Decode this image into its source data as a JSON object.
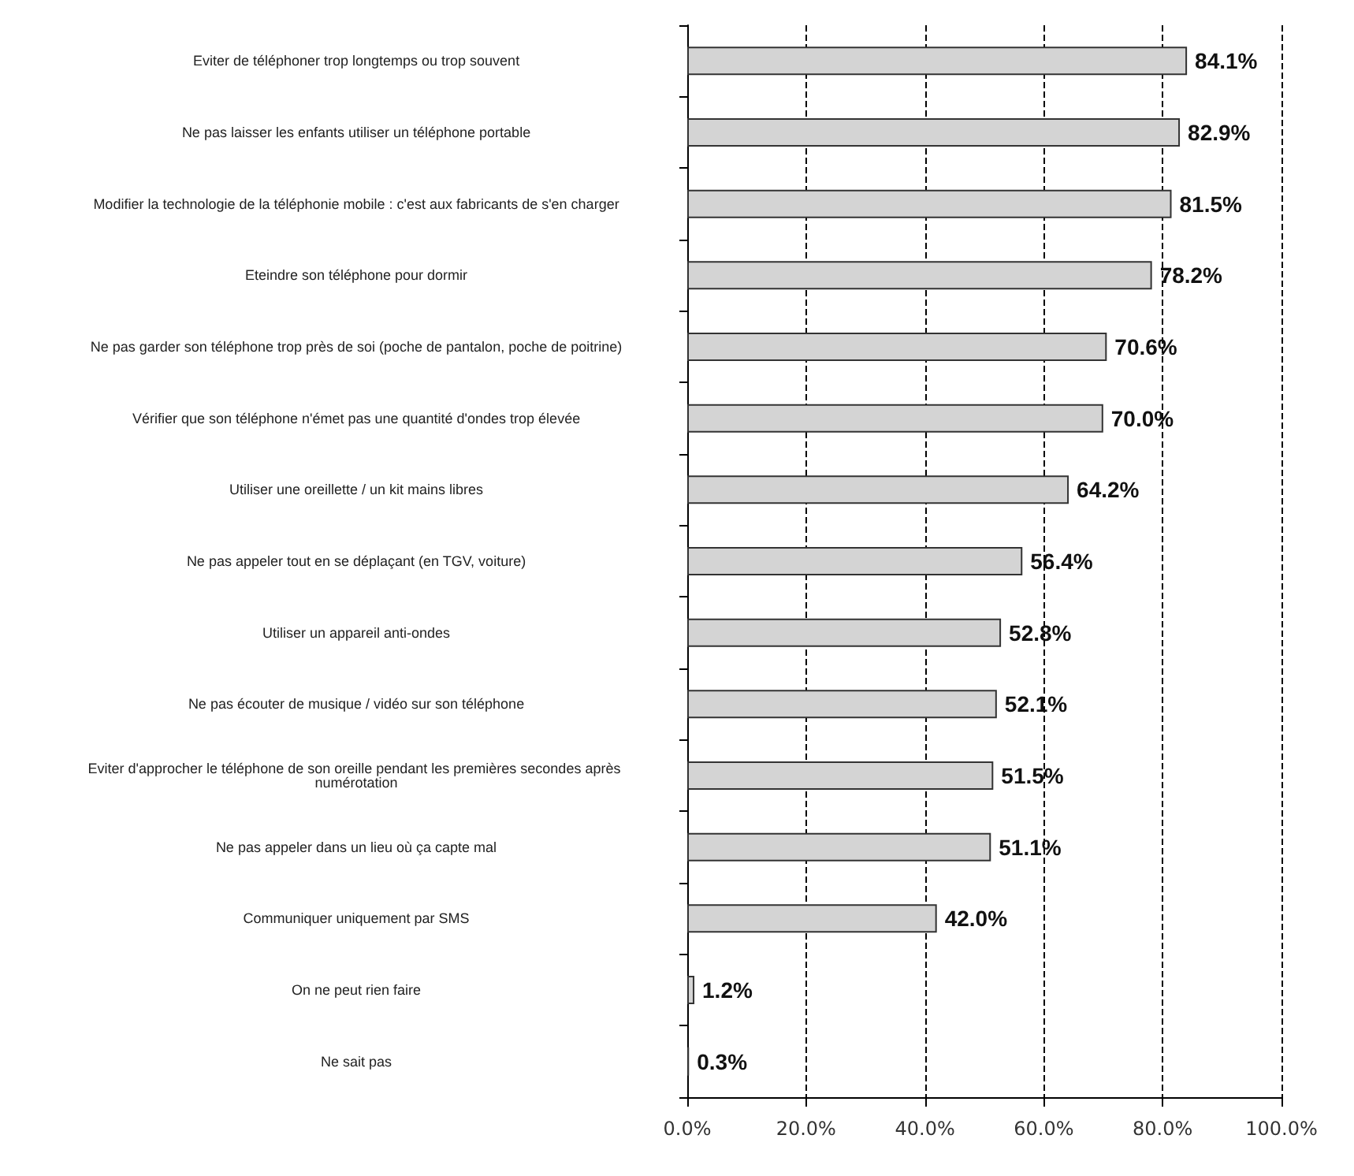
{
  "chart_data": {
    "type": "bar",
    "orientation": "horizontal",
    "categories": [
      "Eviter de téléphoner trop longtemps ou trop souvent",
      "Ne pas laisser les enfants utiliser un téléphone portable",
      "Modifier la technologie de la téléphonie mobile : c'est aux fabricants de s'en charger",
      "Eteindre son téléphone pour dormir",
      "Ne pas garder son téléphone trop près de soi (poche de pantalon, poche de poitrine)",
      "Vérifier que son téléphone n'émet pas une quantité d'ondes trop élevée",
      "Utiliser une oreillette / un kit mains libres",
      "Ne pas appeler tout en se déplaçant (en TGV, voiture)",
      "Utiliser un appareil anti-ondes",
      "Ne pas écouter de musique / vidéo sur son téléphone",
      "Eviter d'approcher le téléphone de son oreille pendant les premières secondes après numérotation",
      "Ne pas appeler dans un lieu où ça capte mal",
      "Communiquer uniquement par SMS",
      "On ne peut rien faire",
      "Ne sait pas"
    ],
    "values": [
      84.1,
      82.9,
      81.5,
      78.2,
      70.6,
      70.0,
      64.2,
      56.4,
      52.8,
      52.1,
      51.5,
      51.1,
      42.0,
      1.2,
      0.3
    ],
    "value_labels": [
      "84.1%",
      "82.9%",
      "81.5%",
      "78.2%",
      "70.6%",
      "70.0%",
      "64.2%",
      "56.4%",
      "52.8%",
      "52.1%",
      "51.5%",
      "51.1%",
      "42.0%",
      "1.2%",
      "0.3%"
    ],
    "color": "#d4d4d4",
    "xlim": [
      0,
      100
    ],
    "xticks": [
      {
        "value": 0,
        "label": "0.0%"
      },
      {
        "value": 20,
        "label": "20.0%"
      },
      {
        "value": 40,
        "label": "40.0%"
      },
      {
        "value": 60,
        "label": "60.0%"
      },
      {
        "value": 80,
        "label": "80.0%"
      },
      {
        "value": 100,
        "label": "100.0%"
      }
    ],
    "grid": "x"
  }
}
